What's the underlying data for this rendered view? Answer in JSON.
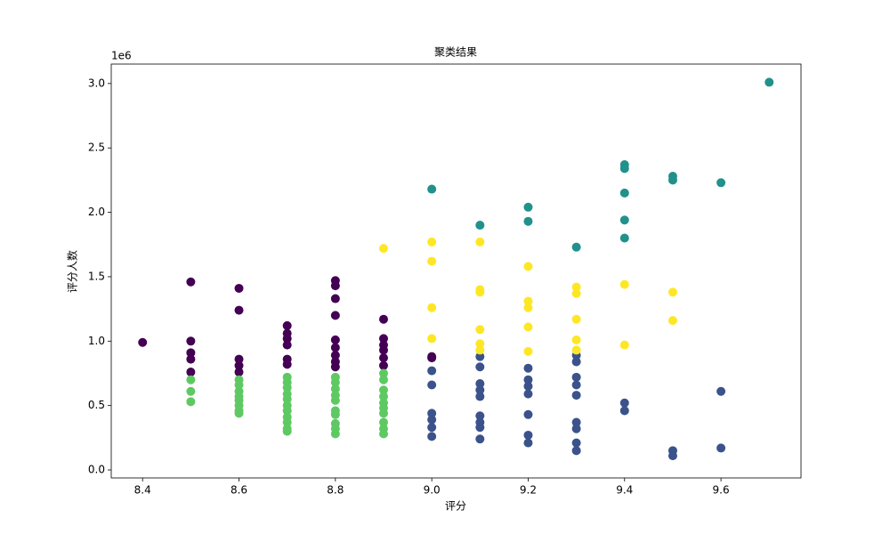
{
  "chart_data": {
    "type": "scatter",
    "title": "聚类结果",
    "x_label": "评分",
    "y_label": "评分人数",
    "y_offset_label": "1e6",
    "xlim": [
      8.335,
      9.766
    ],
    "ylim": [
      -0.062,
      3.151
    ],
    "xticks": [
      8.4,
      8.6,
      8.8,
      {
        "value": 9,
        "label": "9.0"
      },
      9.2,
      9.4,
      9.6
    ],
    "yticks": [
      {
        "value": 0,
        "label": "0.0"
      },
      0.5,
      {
        "value": 1,
        "label": "1.0"
      },
      1.5,
      {
        "value": 2,
        "label": "2.0"
      },
      2.5,
      {
        "value": 3,
        "label": "3.0"
      }
    ],
    "series": [
      {
        "color": "#440154",
        "x": [
          8.4,
          8.5,
          8.5,
          8.5,
          8.5,
          8.5,
          8.6,
          8.6,
          8.6,
          8.6,
          8.6,
          8.7,
          8.7,
          8.7,
          8.7,
          8.7,
          8.7,
          8.8,
          8.8,
          8.8,
          8.8,
          8.8,
          8.8,
          8.8,
          8.8,
          8.8,
          8.9,
          8.9,
          8.9,
          8.9,
          8.9,
          8.9,
          9.0,
          9.0
        ],
        "values": [
          0.99,
          1.46,
          1.0,
          0.91,
          0.86,
          0.76,
          1.41,
          1.24,
          0.86,
          0.81,
          0.76,
          1.12,
          1.06,
          1.02,
          0.97,
          0.86,
          0.82,
          1.47,
          1.43,
          1.33,
          1.2,
          1.01,
          0.95,
          0.89,
          0.84,
          0.8,
          1.17,
          1.02,
          0.97,
          0.93,
          0.87,
          0.81,
          0.88,
          0.87
        ]
      },
      {
        "color": "#5ec962",
        "x": [
          8.5,
          8.5,
          8.5,
          8.6,
          8.6,
          8.6,
          8.6,
          8.6,
          8.6,
          8.6,
          8.6,
          8.7,
          8.7,
          8.7,
          8.7,
          8.7,
          8.7,
          8.7,
          8.7,
          8.7,
          8.7,
          8.7,
          8.8,
          8.8,
          8.8,
          8.8,
          8.8,
          8.8,
          8.8,
          8.8,
          8.8,
          8.8,
          8.9,
          8.9,
          8.9,
          8.9,
          8.9,
          8.9,
          8.9,
          8.9,
          8.9,
          8.9
        ],
        "values": [
          0.7,
          0.61,
          0.53,
          0.7,
          0.66,
          0.61,
          0.57,
          0.54,
          0.5,
          0.46,
          0.44,
          0.72,
          0.68,
          0.64,
          0.59,
          0.55,
          0.5,
          0.46,
          0.41,
          0.37,
          0.32,
          0.3,
          0.72,
          0.68,
          0.63,
          0.58,
          0.54,
          0.46,
          0.43,
          0.36,
          0.32,
          0.28,
          0.75,
          0.7,
          0.62,
          0.57,
          0.52,
          0.48,
          0.44,
          0.37,
          0.32,
          0.28
        ]
      },
      {
        "color": "#3b528b",
        "x": [
          9.0,
          9.0,
          9.0,
          9.0,
          9.0,
          9.0,
          9.1,
          9.1,
          9.1,
          9.1,
          9.1,
          9.1,
          9.1,
          9.1,
          9.1,
          9.2,
          9.2,
          9.2,
          9.2,
          9.2,
          9.2,
          9.2,
          9.3,
          9.3,
          9.3,
          9.3,
          9.3,
          9.3,
          9.3,
          9.3,
          9.3,
          9.4,
          9.4,
          9.5,
          9.5,
          9.6,
          9.6
        ],
        "values": [
          0.77,
          0.66,
          0.44,
          0.39,
          0.33,
          0.26,
          0.88,
          0.8,
          0.67,
          0.62,
          0.57,
          0.42,
          0.37,
          0.33,
          0.24,
          0.79,
          0.7,
          0.65,
          0.59,
          0.43,
          0.27,
          0.21,
          0.89,
          0.84,
          0.72,
          0.66,
          0.58,
          0.37,
          0.32,
          0.21,
          0.15,
          0.52,
          0.46,
          0.15,
          0.11,
          0.61,
          0.17
        ]
      },
      {
        "color": "#21918c",
        "x": [
          9.0,
          9.1,
          9.2,
          9.2,
          9.3,
          9.4,
          9.4,
          9.4,
          9.4,
          9.4,
          9.5,
          9.5,
          9.6,
          9.7
        ],
        "values": [
          2.18,
          1.9,
          2.04,
          1.93,
          1.73,
          2.37,
          2.34,
          2.15,
          1.94,
          1.8,
          2.28,
          2.25,
          2.23,
          3.01
        ]
      },
      {
        "color": "#fde725",
        "x": [
          8.9,
          9.0,
          9.0,
          9.0,
          9.0,
          9.1,
          9.1,
          9.1,
          9.1,
          9.1,
          9.1,
          9.2,
          9.2,
          9.2,
          9.2,
          9.2,
          9.3,
          9.3,
          9.3,
          9.3,
          9.3,
          9.4,
          9.4,
          9.5,
          9.5
        ],
        "values": [
          1.72,
          1.77,
          1.62,
          1.26,
          1.02,
          1.77,
          1.4,
          1.38,
          1.09,
          0.98,
          0.93,
          1.58,
          1.31,
          1.26,
          1.11,
          0.92,
          1.42,
          1.37,
          1.17,
          1.01,
          0.93,
          1.44,
          0.97,
          1.38,
          1.16
        ]
      }
    ]
  }
}
